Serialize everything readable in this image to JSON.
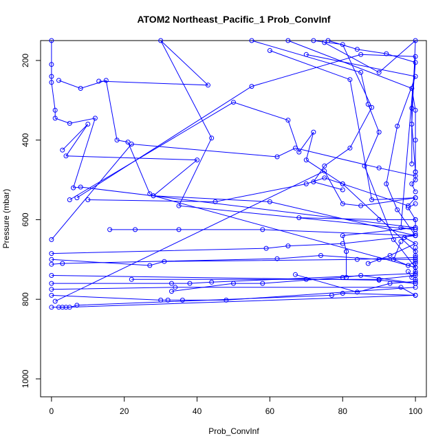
{
  "chart_data": {
    "type": "line",
    "title": "ATOM2 Northeast_Pacific_1 Prob_ConvInf",
    "xlabel": "Prob_ConvInf",
    "ylabel": "Pressure (mbar)",
    "xlim": [
      -3,
      103
    ],
    "ylim": [
      1045,
      150
    ],
    "y_inverted": true,
    "x_ticks": [
      0,
      20,
      40,
      60,
      80,
      100
    ],
    "y_ticks": [
      200,
      400,
      600,
      800,
      1000
    ],
    "color": "#0000ff",
    "marker": "open-circle",
    "grid": false,
    "legend": "none",
    "series": [
      {
        "points": [
          [
            0,
            150
          ],
          [
            0,
            210
          ],
          [
            0,
            240
          ],
          [
            0,
            255
          ],
          [
            1,
            325
          ],
          [
            1,
            345
          ],
          [
            5,
            358
          ],
          [
            12,
            345
          ],
          [
            6,
            520
          ],
          [
            8,
            518
          ],
          [
            100,
            620
          ]
        ]
      },
      {
        "points": [
          [
            2,
            250
          ],
          [
            8,
            270
          ],
          [
            15,
            250
          ],
          [
            18,
            400
          ],
          [
            21,
            405
          ],
          [
            27,
            535
          ],
          [
            28,
            540
          ],
          [
            60,
            555
          ],
          [
            100,
            640
          ]
        ]
      },
      {
        "points": [
          [
            3,
            425
          ],
          [
            10,
            360
          ],
          [
            4,
            440
          ],
          [
            40,
            450
          ],
          [
            28,
            540
          ],
          [
            100,
            720
          ]
        ]
      },
      {
        "points": [
          [
            13,
            252
          ],
          [
            43,
            262
          ],
          [
            30,
            150
          ],
          [
            44,
            395
          ],
          [
            35,
            565
          ],
          [
            100,
            625
          ]
        ]
      },
      {
        "points": [
          [
            5,
            550
          ],
          [
            50,
            305
          ],
          [
            65,
            350
          ],
          [
            68,
            430
          ],
          [
            72,
            380
          ],
          [
            70,
            450
          ],
          [
            80,
            510
          ],
          [
            98,
            565
          ],
          [
            100,
            545
          ]
        ]
      },
      {
        "points": [
          [
            7,
            545
          ],
          [
            55,
            265
          ],
          [
            85,
            185
          ],
          [
            100,
            190
          ],
          [
            96,
            620
          ],
          [
            100,
            625
          ]
        ]
      },
      {
        "points": [
          [
            10,
            550
          ],
          [
            45,
            555
          ],
          [
            70,
            510
          ],
          [
            75,
            495
          ],
          [
            80,
            510
          ],
          [
            100,
            680
          ]
        ]
      },
      {
        "points": [
          [
            16,
            625
          ],
          [
            23,
            625
          ],
          [
            35,
            625
          ],
          [
            58,
            625
          ],
          [
            100,
            640
          ]
        ]
      },
      {
        "points": [
          [
            0,
            650
          ],
          [
            22,
            410
          ],
          [
            62,
            442
          ],
          [
            67,
            420
          ],
          [
            90,
            470
          ],
          [
            100,
            490
          ]
        ]
      },
      {
        "points": [
          [
            0,
            685
          ],
          [
            59,
            672
          ],
          [
            65,
            666
          ],
          [
            80,
            660
          ],
          [
            100,
            640
          ]
        ]
      },
      {
        "points": [
          [
            0,
            700
          ],
          [
            27,
            715
          ],
          [
            31,
            705
          ],
          [
            84,
            700
          ],
          [
            100,
            695
          ]
        ]
      },
      {
        "points": [
          [
            0,
            712
          ],
          [
            3,
            710
          ],
          [
            62,
            698
          ],
          [
            74,
            690
          ],
          [
            90,
            700
          ],
          [
            100,
            700
          ]
        ]
      },
      {
        "points": [
          [
            0,
            740
          ],
          [
            90,
            752
          ],
          [
            100,
            760
          ]
        ]
      },
      {
        "points": [
          [
            0,
            760
          ],
          [
            33,
            760
          ],
          [
            38,
            760
          ],
          [
            44,
            757
          ],
          [
            100,
            735
          ]
        ]
      },
      {
        "points": [
          [
            0,
            775
          ],
          [
            34,
            770
          ],
          [
            96,
            770
          ],
          [
            100,
            790
          ]
        ]
      },
      {
        "points": [
          [
            0,
            790
          ],
          [
            30,
            802
          ],
          [
            32,
            802
          ],
          [
            36,
            802
          ],
          [
            48,
            802
          ],
          [
            100,
            770
          ]
        ]
      },
      {
        "points": [
          [
            1,
            805
          ],
          [
            75,
            478
          ],
          [
            80,
            560
          ],
          [
            85,
            565
          ],
          [
            100,
            545
          ]
        ]
      },
      {
        "points": [
          [
            0,
            820
          ],
          [
            5,
            820
          ],
          [
            7,
            815
          ],
          [
            77,
            790
          ],
          [
            80,
            785
          ],
          [
            100,
            790
          ]
        ]
      },
      {
        "points": [
          [
            2,
            820
          ],
          [
            3,
            820
          ],
          [
            4,
            820
          ],
          [
            100,
            790
          ]
        ]
      },
      {
        "points": [
          [
            22,
            750
          ],
          [
            70,
            750
          ],
          [
            90,
            750
          ],
          [
            100,
            740
          ]
        ]
      },
      {
        "points": [
          [
            33,
            780
          ],
          [
            50,
            760
          ],
          [
            58,
            760
          ],
          [
            80,
            745
          ],
          [
            85,
            740
          ],
          [
            100,
            760
          ]
        ]
      },
      {
        "points": [
          [
            67,
            738
          ],
          [
            84,
            782
          ],
          [
            93,
            760
          ],
          [
            100,
            755
          ]
        ]
      },
      {
        "points": [
          [
            68,
            595
          ],
          [
            90,
            600
          ],
          [
            100,
            600
          ]
        ]
      },
      {
        "points": [
          [
            72,
            150
          ],
          [
            80,
            160
          ],
          [
            88,
            318
          ],
          [
            82,
            420
          ],
          [
            75,
            465
          ],
          [
            72,
            505
          ],
          [
            80,
            525
          ]
        ]
      },
      {
        "points": [
          [
            76,
            150
          ],
          [
            84,
            172
          ],
          [
            92,
            183
          ],
          [
            100,
            205
          ],
          [
            99,
            320
          ],
          [
            99,
            460
          ]
        ]
      },
      {
        "points": [
          [
            75,
            155
          ],
          [
            90,
            230
          ],
          [
            100,
            150
          ],
          [
            99,
            360
          ],
          [
            100,
            480
          ]
        ]
      },
      {
        "points": [
          [
            65,
            150
          ],
          [
            99,
            270
          ],
          [
            100,
            325
          ],
          [
            100,
            400
          ],
          [
            100,
            480
          ],
          [
            100,
            500
          ],
          [
            99,
            510
          ],
          [
            100,
            530
          ]
        ]
      },
      {
        "points": [
          [
            70,
            185
          ],
          [
            100,
            240
          ],
          [
            95,
            365
          ],
          [
            92,
            510
          ],
          [
            95,
            575
          ],
          [
            100,
            640
          ]
        ]
      },
      {
        "points": [
          [
            60,
            175
          ],
          [
            82,
            248
          ],
          [
            88,
            550
          ],
          [
            100,
            545
          ]
        ]
      },
      {
        "points": [
          [
            55,
            150
          ],
          [
            85,
            230
          ],
          [
            87,
            310
          ],
          [
            90,
            380
          ],
          [
            86,
            465
          ],
          [
            94,
            650
          ],
          [
            100,
            720
          ]
        ]
      },
      {
        "points": [
          [
            81,
            680
          ],
          [
            80,
            640
          ],
          [
            100,
            620
          ],
          [
            100,
            600
          ],
          [
            98,
            570
          ],
          [
            100,
            560
          ]
        ]
      },
      {
        "points": [
          [
            81,
            745
          ],
          [
            81,
            680
          ]
        ]
      },
      {
        "points": [
          [
            87,
            710
          ],
          [
            93,
            690
          ],
          [
            100,
            660
          ],
          [
            97,
            645
          ],
          [
            100,
            635
          ]
        ]
      },
      {
        "points": [
          [
            96,
            655
          ],
          [
            94,
            700
          ],
          [
            98,
            715
          ],
          [
            100,
            705
          ],
          [
            100,
            750
          ],
          [
            100,
            760
          ]
        ]
      },
      {
        "points": [
          [
            98,
            730
          ],
          [
            99,
            745
          ],
          [
            100,
            730
          ],
          [
            100,
            710
          ],
          [
            100,
            690
          ],
          [
            100,
            670
          ]
        ]
      }
    ]
  }
}
